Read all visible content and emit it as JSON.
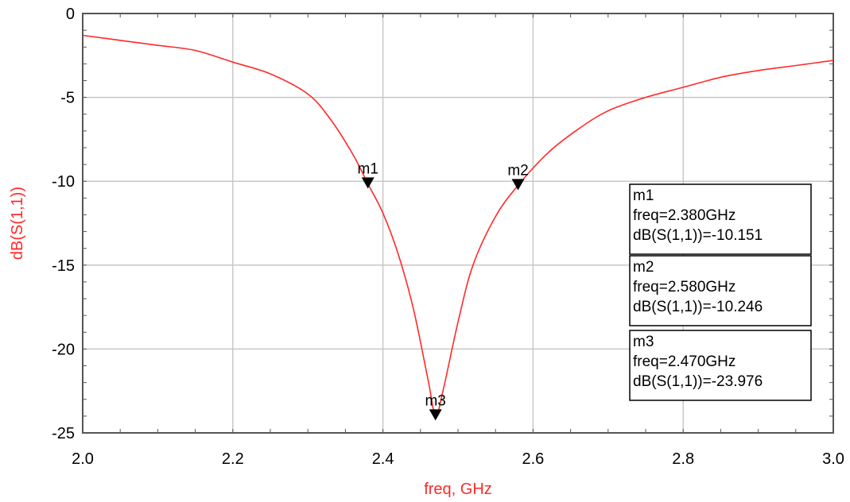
{
  "chart_data": {
    "type": "line",
    "xlabel": "freq, GHz",
    "ylabel": "dB(S(1,1))",
    "xlim": [
      2.0,
      3.0
    ],
    "ylim": [
      -25,
      0
    ],
    "x_ticks": [
      "2.0",
      "2.2",
      "2.4",
      "2.6",
      "2.8",
      "3.0"
    ],
    "y_ticks": [
      "0",
      "-5",
      "-10",
      "-15",
      "-20",
      "-25"
    ],
    "x_tick_values": [
      2.0,
      2.2,
      2.4,
      2.6,
      2.8,
      3.0
    ],
    "y_tick_values": [
      0,
      -5,
      -10,
      -15,
      -20,
      -25
    ],
    "grid": true,
    "series": [
      {
        "color": "#ff2a2a",
        "x": [
          2.0,
          2.05,
          2.1,
          2.15,
          2.2,
          2.25,
          2.3,
          2.33,
          2.36,
          2.38,
          2.4,
          2.42,
          2.44,
          2.46,
          2.47,
          2.48,
          2.5,
          2.52,
          2.55,
          2.58,
          2.62,
          2.66,
          2.7,
          2.75,
          2.8,
          2.85,
          2.9,
          2.95,
          3.0
        ],
        "y": [
          -1.3,
          -1.6,
          -1.9,
          -2.2,
          -2.9,
          -3.6,
          -4.8,
          -6.3,
          -8.4,
          -10.151,
          -11.9,
          -14.3,
          -17.5,
          -21.8,
          -23.976,
          -22.5,
          -18.4,
          -15.0,
          -12.1,
          -10.246,
          -8.3,
          -6.9,
          -5.8,
          -5.0,
          -4.4,
          -3.8,
          -3.4,
          -3.1,
          -2.8
        ]
      }
    ],
    "markers": [
      {
        "name": "m1",
        "freq": 2.38,
        "value": -10.151,
        "lines": [
          "m1",
          "freq=2.380GHz",
          "dB(S(1,1))=-10.151"
        ]
      },
      {
        "name": "m2",
        "freq": 2.58,
        "value": -10.246,
        "lines": [
          "m2",
          "freq=2.580GHz",
          "dB(S(1,1))=-10.246"
        ]
      },
      {
        "name": "m3",
        "freq": 2.47,
        "value": -23.976,
        "lines": [
          "m3",
          "freq=2.470GHz",
          "dB(S(1,1))=-23.976"
        ]
      }
    ]
  }
}
